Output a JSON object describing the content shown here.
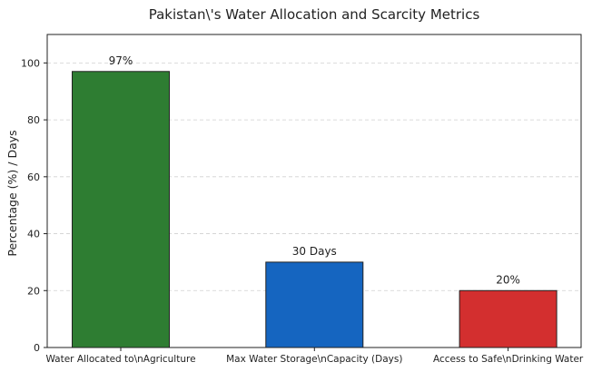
{
  "chart_data": {
    "type": "bar",
    "title": "Pakistan\\'s Water Allocation and Scarcity Metrics",
    "xlabel": "",
    "ylabel": "Percentage (%) / Days",
    "ylim": [
      0,
      110
    ],
    "yticks": [
      0,
      20,
      40,
      60,
      80,
      100
    ],
    "grid": "y, dashed",
    "legend": "none",
    "categories": [
      "Water Allocated to\\nAgriculture",
      "Max Water Storage\\nCapacity (Days)",
      "Access to Safe\\nDrinking Water"
    ],
    "values": [
      97,
      30,
      20
    ],
    "data_labels": [
      "97%",
      "30 Days",
      "20%"
    ],
    "colors": [
      "#2e7d32",
      "#1565c0",
      "#d32f2f"
    ]
  }
}
